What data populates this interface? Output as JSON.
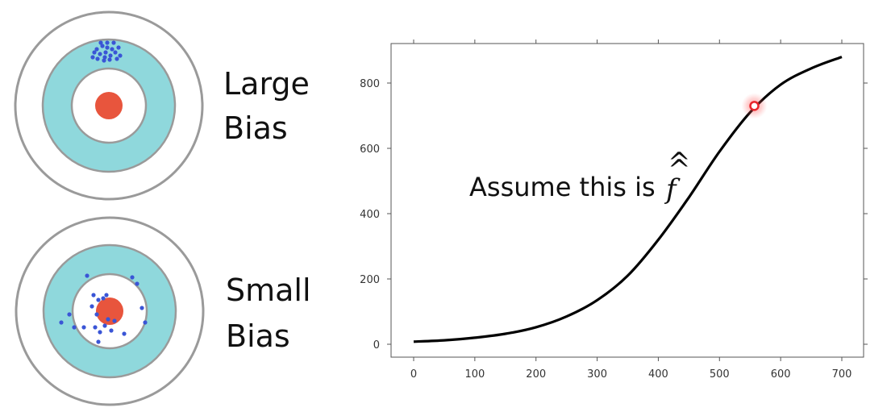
{
  "targets": [
    {
      "label_lines": [
        "Large",
        "Bias"
      ],
      "colors": {
        "outer": "#ffffff",
        "ring": "#8fd8dc",
        "inner": "#ffffff",
        "bullseye": "#e8553d",
        "dots": "#3a55d6",
        "stroke": "#9a9a9a"
      }
    },
    {
      "label_lines": [
        "Small",
        "Bias"
      ],
      "colors": {
        "outer": "#ffffff",
        "ring": "#8fd8dc",
        "inner": "#ffffff",
        "bullseye": "#e8553d",
        "dots": "#3a55d6",
        "stroke": "#9a9a9a"
      }
    }
  ],
  "annotation": {
    "text": "Assume this is",
    "symbol": "f",
    "hat": "^",
    "hat2": "^"
  },
  "chart_data": {
    "type": "line",
    "xlim": [
      0,
      700
    ],
    "ylim": [
      -30,
      920
    ],
    "x_ticks": [
      0,
      100,
      200,
      300,
      400,
      500,
      600,
      700
    ],
    "y_ticks": [
      0,
      200,
      400,
      600,
      800
    ],
    "series": [
      {
        "color": "#000000",
        "x": [
          0,
          50,
          100,
          150,
          200,
          250,
          300,
          350,
          400,
          450,
          500,
          550,
          600,
          650,
          700
        ],
        "y": [
          8,
          12,
          20,
          32,
          52,
          85,
          135,
          210,
          320,
          450,
          590,
          710,
          795,
          845,
          880
        ]
      }
    ],
    "highlight_point": {
      "x": 557,
      "y": 730,
      "color": "#e8262c"
    }
  }
}
